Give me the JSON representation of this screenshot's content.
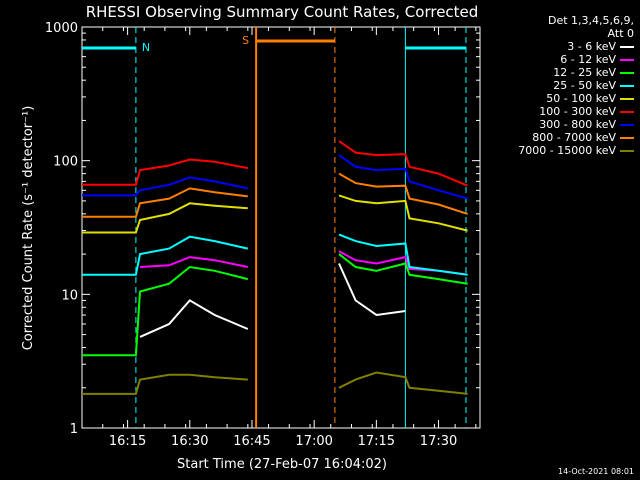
{
  "chart_data": {
    "type": "line",
    "title": "RHESSI Observing Summary Count Rates, Corrected",
    "xlabel": "Start Time (27-Feb-07 16:04:02)",
    "ylabel": "Corrected Count Rate (s⁻¹ detector⁻¹)",
    "xlim": [
      "16:04",
      "17:40"
    ],
    "ylim": [
      1,
      1000
    ],
    "yscale": "log",
    "x_ticks": [
      "16:15",
      "16:30",
      "16:45",
      "17:00",
      "17:15",
      "17:30"
    ],
    "y_ticks": [
      "1",
      "10",
      "100",
      "1000"
    ],
    "legend_header": [
      "Det 1,3,4,5,6,9,",
      "Att 0"
    ],
    "legend_placement": "right",
    "timestamp": "14-Oct-2021 08:01",
    "flag_labels": {
      "night": "N",
      "saa": "S"
    },
    "flag_colors": {
      "night": "#00ffff",
      "saa": "#ff7f00"
    },
    "x_times": [
      "16:04",
      "16:17",
      "16:18",
      "16:25",
      "16:30",
      "16:36",
      "16:44",
      "16:45",
      "17:05",
      "17:06",
      "17:10",
      "17:15",
      "17:22",
      "17:23",
      "17:30",
      "17:37"
    ],
    "series": [
      {
        "name": "3 - 6 keV",
        "color": "#ffffff",
        "values": [
          null,
          null,
          4.8,
          6.0,
          9.0,
          7.0,
          5.5,
          null,
          null,
          17.0,
          9.0,
          7.0,
          7.5,
          null,
          null,
          null
        ]
      },
      {
        "name": "6 - 12 keV",
        "color": "#ff00ff",
        "values": [
          null,
          null,
          16.0,
          16.5,
          19.0,
          18.0,
          16.0,
          null,
          null,
          21.0,
          18.0,
          17.0,
          19.0,
          15.5,
          15.0,
          14.0
        ]
      },
      {
        "name": "12 - 25 keV",
        "color": "#00ff00",
        "values": [
          3.5,
          3.5,
          10.5,
          12.0,
          16.0,
          15.0,
          13.0,
          null,
          null,
          20.0,
          16.0,
          15.0,
          17.0,
          14.0,
          13.0,
          12.0
        ]
      },
      {
        "name": "25 - 50 keV",
        "color": "#00ffff",
        "values": [
          14.0,
          14.0,
          20.0,
          22.0,
          27.0,
          25.0,
          22.0,
          null,
          null,
          28.0,
          25.0,
          23.0,
          24.0,
          16.0,
          15.0,
          14.0
        ]
      },
      {
        "name": "50 - 100 keV",
        "color": "#e0e000",
        "values": [
          29.0,
          29.0,
          36.0,
          40.0,
          48.0,
          46.0,
          44.0,
          null,
          null,
          55.0,
          50.0,
          48.0,
          50.0,
          37.0,
          34.0,
          30.0
        ]
      },
      {
        "name": "100 - 300 keV",
        "color": "#ff0000",
        "values": [
          66.0,
          66.0,
          85.0,
          92.0,
          102.0,
          98.0,
          88.0,
          null,
          null,
          140.0,
          115.0,
          110.0,
          112.0,
          90.0,
          80.0,
          65.0
        ]
      },
      {
        "name": "300 - 800 keV",
        "color": "#0000ff",
        "values": [
          55.0,
          55.0,
          60.0,
          66.0,
          75.0,
          70.0,
          62.0,
          null,
          null,
          110.0,
          90.0,
          85.0,
          87.0,
          70.0,
          60.0,
          52.0
        ]
      },
      {
        "name": "800 - 7000 keV",
        "color": "#ff7f00",
        "values": [
          38.0,
          38.0,
          48.0,
          52.0,
          62.0,
          58.0,
          54.0,
          null,
          null,
          80.0,
          68.0,
          64.0,
          65.0,
          52.0,
          47.0,
          40.0
        ]
      },
      {
        "name": "7000 - 15000 keV",
        "color": "#808000",
        "values": [
          1.8,
          1.8,
          2.3,
          2.5,
          2.5,
          2.4,
          2.3,
          null,
          null,
          2.0,
          2.3,
          2.6,
          2.4,
          2.0,
          1.9,
          1.8
        ]
      }
    ]
  }
}
